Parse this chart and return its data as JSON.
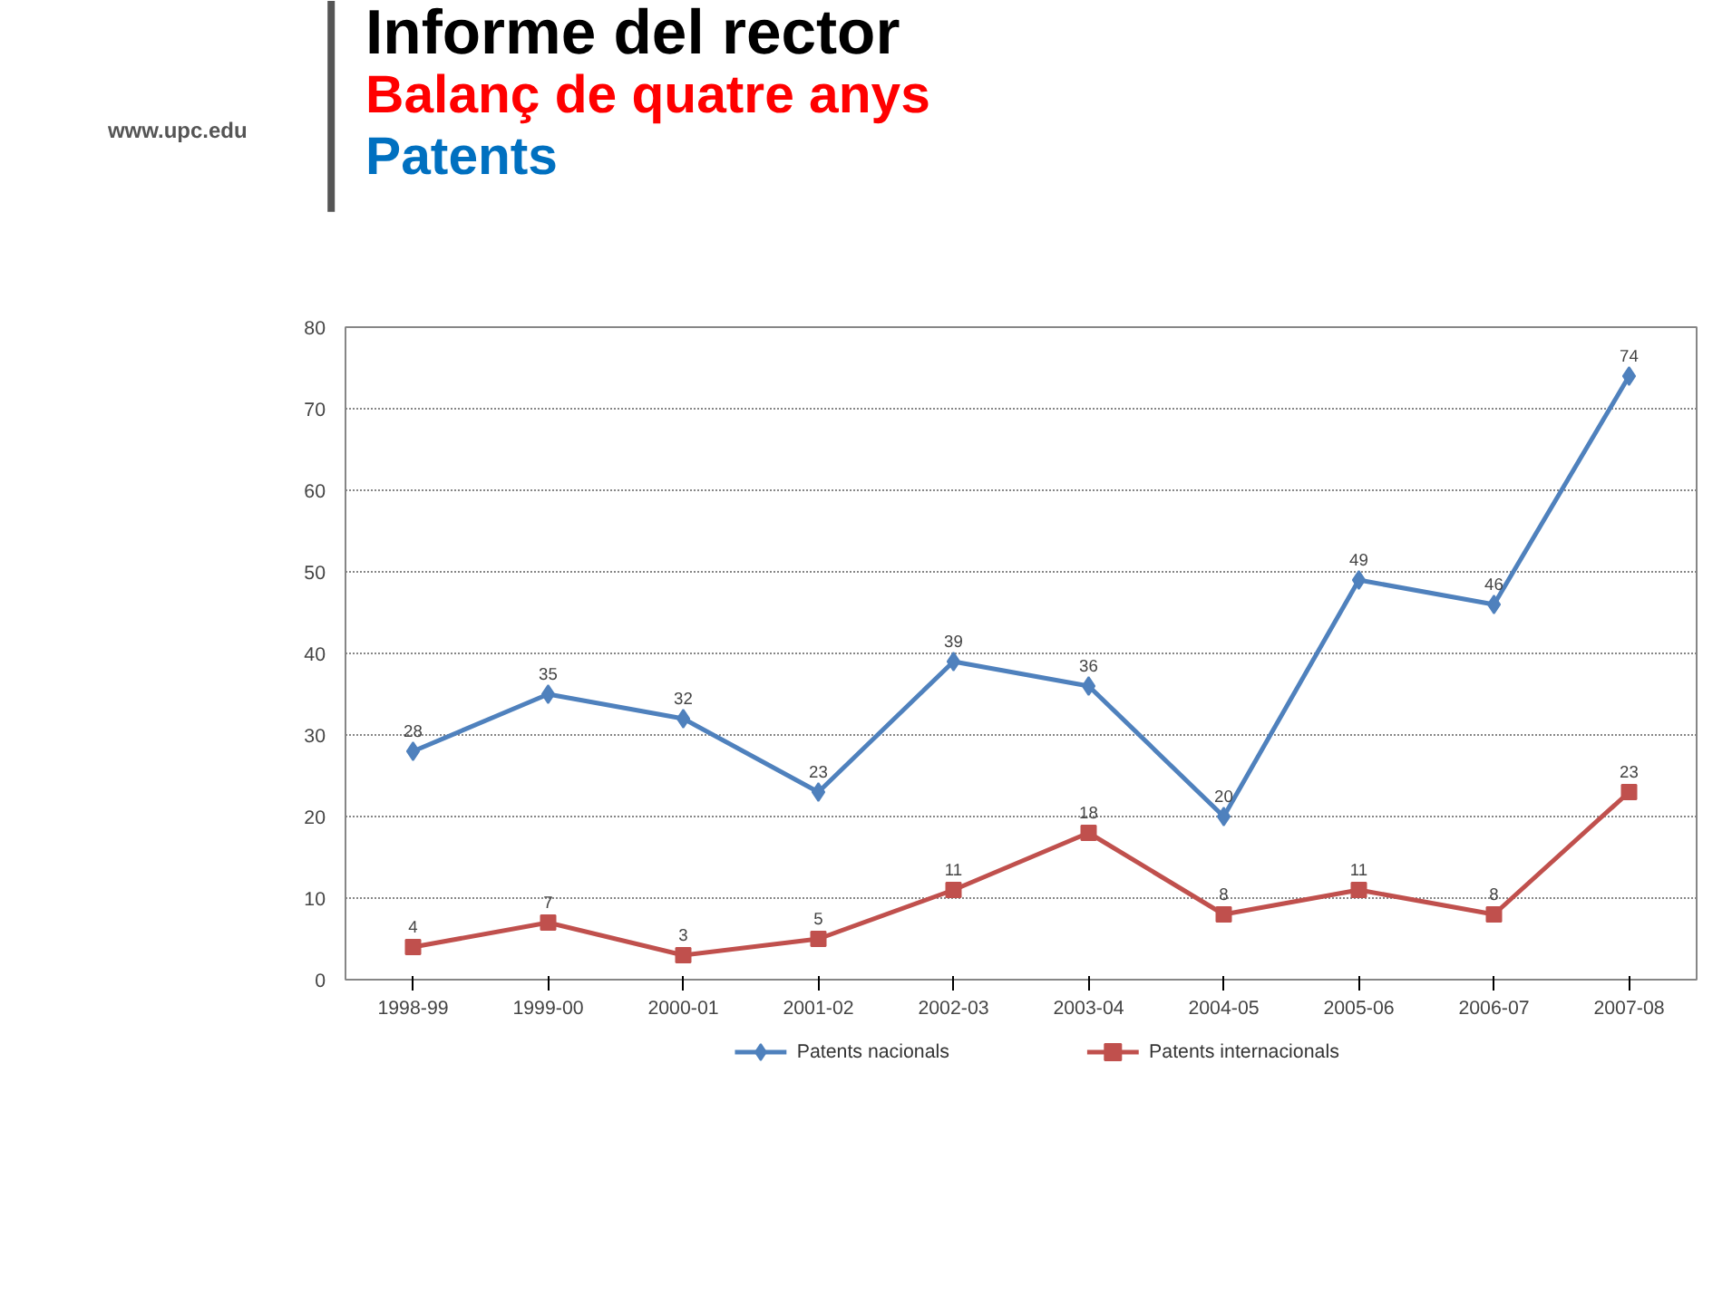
{
  "chart_data": {
    "type": "line",
    "title": "Informe del rector",
    "subtitle": "Balanç de quatre anys",
    "annotations": [
      "Patents",
      "www.upc.edu"
    ],
    "categories": [
      "1998-99",
      "1999-00",
      "2000-01",
      "2001-02",
      "2002-03",
      "2003-04",
      "2004-05",
      "2005-06",
      "2006-07",
      "2007-08"
    ],
    "series": [
      {
        "name": "Patents nacionals",
        "color": "#4f81bd",
        "marker": "diamond",
        "values": [
          28,
          35,
          32,
          23,
          39,
          36,
          20,
          49,
          46,
          74
        ]
      },
      {
        "name": "Patents internacionals",
        "color": "#c0504d",
        "marker": "square",
        "values": [
          4,
          7,
          3,
          5,
          11,
          18,
          8,
          11,
          8,
          23
        ]
      }
    ],
    "ylim": [
      0,
      80
    ],
    "yticks": [
      0,
      10,
      20,
      30,
      40,
      50,
      60,
      70,
      80
    ],
    "grid": "y",
    "legend": "bottom",
    "data_labels": true,
    "line_style": "solid"
  }
}
